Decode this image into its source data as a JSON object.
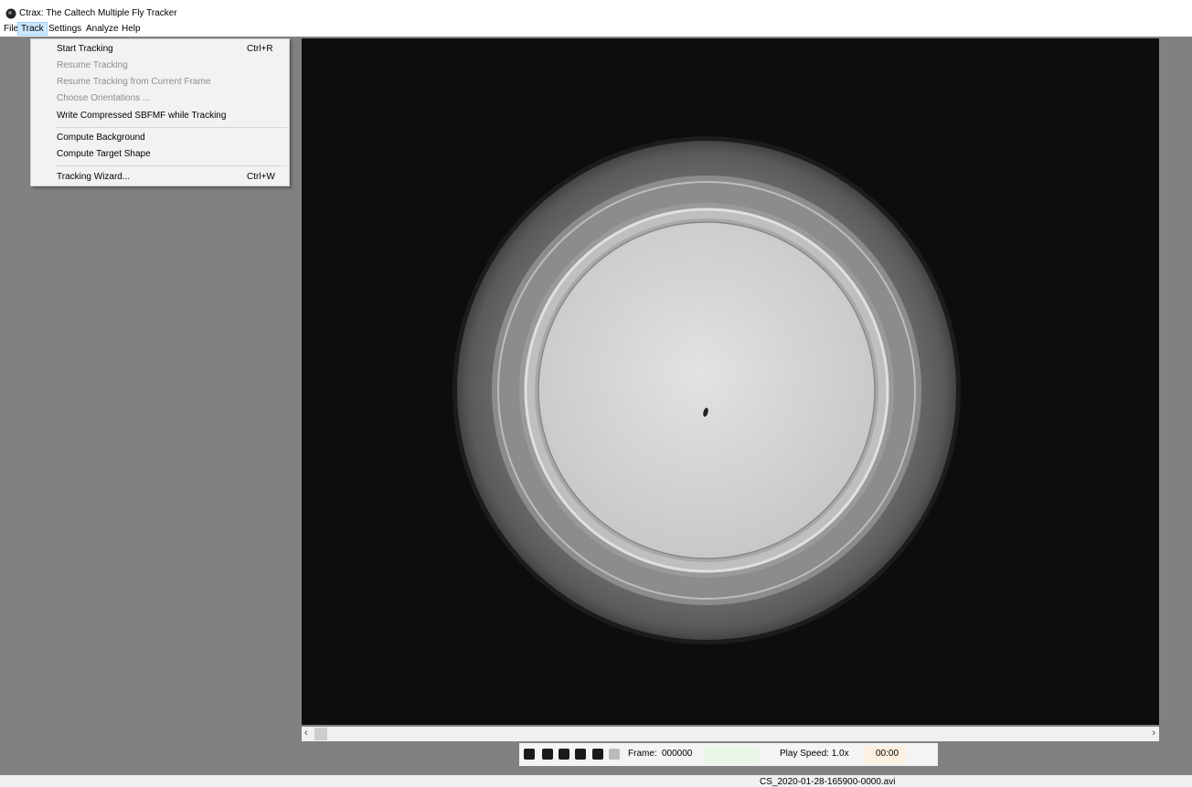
{
  "window": {
    "title": "Ctrax: The Caltech Multiple Fly Tracker"
  },
  "menu_bar": [
    "File",
    "Track",
    "Settings",
    "Analyze",
    "Help"
  ],
  "track_menu": [
    {
      "label": "Start Tracking",
      "shortcut": "Ctrl+R"
    },
    {
      "label": "Resume Tracking"
    },
    {
      "label": "Resume Tracking from Current Frame"
    },
    {
      "label": "Choose Orientations ..."
    },
    {
      "label": "Write Compressed SBFMF while Tracking"
    },
    {
      "label": "Compute Background"
    },
    {
      "label": "Compute Target Shape"
    },
    {
      "label": "Tracking Wizard...",
      "shortcut": "Ctrl+W"
    }
  ],
  "toolbar": {
    "frame_label": "Frame:",
    "frame_value": "000000",
    "play_speed": "Play Speed: 1.0x",
    "time": "00:00"
  },
  "status_bar": {
    "filename": "CS_2020-01-28-165900-0000.avi"
  }
}
